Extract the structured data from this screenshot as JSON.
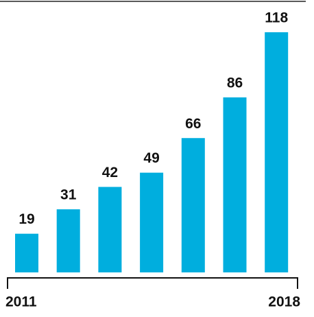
{
  "chart_data": {
    "type": "bar",
    "categories": [
      "2011",
      null,
      null,
      null,
      null,
      null,
      "2018"
    ],
    "values": [
      19,
      31,
      42,
      49,
      66,
      86,
      118
    ],
    "color": "#00aede"
  }
}
